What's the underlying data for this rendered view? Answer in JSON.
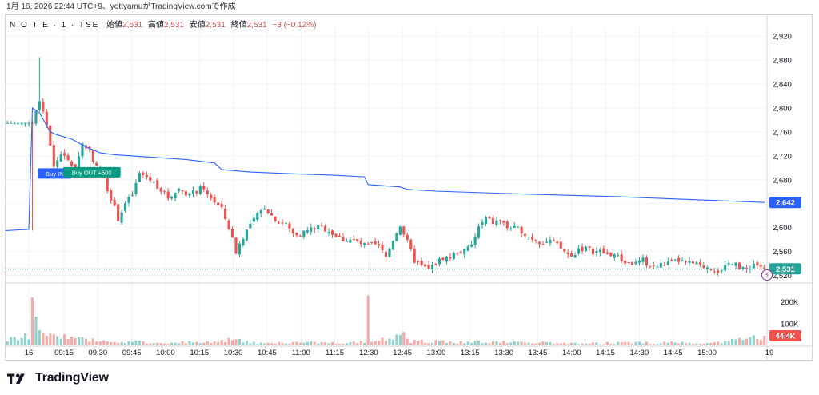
{
  "caption": "1月 16, 2026 22:44 UTC+9、yottyamuがTradingView.comで作成",
  "legend": {
    "symbol": "N O T E · 1 · TSE",
    "open_label": "始値",
    "open": "2,531",
    "high_label": "高値",
    "high": "2,531",
    "low_label": "安値",
    "low": "2,531",
    "close_label": "終値",
    "close": "2,531",
    "change": "−3 (−0.12%)"
  },
  "brand": "TradingView",
  "icons": [
    "tradingview-logo-icon",
    "lightning-icon"
  ],
  "colors": {
    "up": "#26a69a",
    "down": "#ef5350",
    "vwap": "#2962ff",
    "close_badge": "#26a69a",
    "vwap_badge": "#2962ff",
    "volume_badge": "#ef5350"
  },
  "chart_data": {
    "type": "candlestick",
    "interval": "1 minute",
    "x_tick_labels": [
      "16",
      "09:15",
      "09:30",
      "09:45",
      "10:00",
      "10:15",
      "10:30",
      "10:45",
      "11:00",
      "11:15",
      "12:30",
      "12:45",
      "13:00",
      "13:15",
      "13:30",
      "13:45",
      "14:00",
      "14:15",
      "14:30",
      "14:45",
      "15:00",
      "19"
    ],
    "price_axis": {
      "ticks": [
        "2,920",
        "2,880",
        "2,840",
        "2,800",
        "2,760",
        "2,720",
        "2,680",
        "2,640",
        "2,600",
        "2,560",
        "2,520"
      ],
      "range": [
        2510,
        2935
      ]
    },
    "volume_axis": {
      "ticks": [
        "200K",
        "100K"
      ],
      "range": [
        0,
        280000
      ]
    },
    "price_path": [
      [
        0,
        2775
      ],
      [
        7,
        2775
      ],
      [
        8,
        2790
      ],
      [
        9,
        2815
      ],
      [
        10,
        2790
      ],
      [
        11,
        2770
      ],
      [
        12,
        2740
      ],
      [
        13,
        2700
      ],
      [
        15,
        2725
      ],
      [
        17,
        2710
      ],
      [
        19,
        2700
      ],
      [
        21,
        2740
      ],
      [
        23,
        2730
      ],
      [
        25,
        2700
      ],
      [
        27,
        2680
      ],
      [
        29,
        2650
      ],
      [
        31,
        2615
      ],
      [
        33,
        2640
      ],
      [
        35,
        2655
      ],
      [
        37,
        2690
      ],
      [
        39,
        2685
      ],
      [
        42,
        2670
      ],
      [
        45,
        2650
      ],
      [
        48,
        2665
      ],
      [
        51,
        2655
      ],
      [
        54,
        2665
      ],
      [
        57,
        2650
      ],
      [
        60,
        2630
      ],
      [
        62,
        2600
      ],
      [
        64,
        2560
      ],
      [
        66,
        2585
      ],
      [
        68,
        2605
      ],
      [
        70,
        2620
      ],
      [
        72,
        2635
      ],
      [
        74,
        2620
      ],
      [
        76,
        2610
      ],
      [
        78,
        2605
      ],
      [
        80,
        2590
      ],
      [
        82,
        2590
      ],
      [
        84,
        2595
      ],
      [
        86,
        2600
      ],
      [
        88,
        2600
      ],
      [
        90,
        2595
      ],
      [
        92,
        2585
      ],
      [
        94,
        2580
      ],
      [
        96,
        2580
      ],
      [
        98,
        2575
      ],
      [
        100,
        2570
      ],
      [
        102,
        2570
      ],
      [
        104,
        2568
      ],
      [
        106,
        2550
      ],
      [
        108,
        2580
      ],
      [
        110,
        2605
      ],
      [
        111,
        2590
      ],
      [
        113,
        2560
      ],
      [
        114,
        2545
      ],
      [
        116,
        2535
      ],
      [
        118,
        2530
      ],
      [
        120,
        2540
      ],
      [
        122,
        2550
      ],
      [
        124,
        2550
      ],
      [
        126,
        2560
      ],
      [
        128,
        2560
      ],
      [
        130,
        2570
      ],
      [
        132,
        2600
      ],
      [
        134,
        2615
      ],
      [
        136,
        2608
      ],
      [
        138,
        2612
      ],
      [
        140,
        2600
      ],
      [
        142,
        2598
      ],
      [
        144,
        2595
      ],
      [
        146,
        2585
      ],
      [
        148,
        2580
      ],
      [
        150,
        2575
      ],
      [
        152,
        2578
      ],
      [
        154,
        2570
      ],
      [
        156,
        2560
      ],
      [
        158,
        2550
      ],
      [
        160,
        2565
      ],
      [
        162,
        2565
      ],
      [
        164,
        2560
      ],
      [
        166,
        2560
      ],
      [
        168,
        2555
      ],
      [
        170,
        2555
      ],
      [
        172,
        2545
      ],
      [
        174,
        2540
      ],
      [
        176,
        2540
      ],
      [
        178,
        2545
      ],
      [
        180,
        2535
      ],
      [
        182,
        2535
      ],
      [
        184,
        2540
      ],
      [
        186,
        2540
      ],
      [
        188,
        2545
      ],
      [
        190,
        2540
      ],
      [
        192,
        2540
      ],
      [
        194,
        2535
      ],
      [
        196,
        2535
      ],
      [
        198,
        2530
      ],
      [
        200,
        2525
      ],
      [
        202,
        2540
      ],
      [
        204,
        2545
      ],
      [
        205,
        2530
      ],
      [
        207,
        2530
      ],
      [
        209,
        2540
      ],
      [
        211,
        2535
      ],
      [
        212,
        2531
      ]
    ],
    "candle_count": 213,
    "open_price": 2775,
    "last_price": 2531,
    "session_high": 2885,
    "session_low": 2520,
    "vwap_path": [
      [
        0,
        2595
      ],
      [
        6,
        2597
      ],
      [
        7,
        2800
      ],
      [
        9,
        2792
      ],
      [
        12,
        2760
      ],
      [
        14,
        2755
      ],
      [
        18,
        2748
      ],
      [
        22,
        2735
      ],
      [
        26,
        2725
      ],
      [
        30,
        2722
      ],
      [
        40,
        2718
      ],
      [
        50,
        2714
      ],
      [
        58,
        2708
      ],
      [
        60,
        2697
      ],
      [
        68,
        2693
      ],
      [
        80,
        2690
      ],
      [
        90,
        2688
      ],
      [
        100,
        2685
      ],
      [
        101,
        2672
      ],
      [
        110,
        2668
      ],
      [
        112,
        2664
      ],
      [
        120,
        2661
      ],
      [
        140,
        2657
      ],
      [
        170,
        2652
      ],
      [
        200,
        2645
      ],
      [
        212,
        2642
      ]
    ],
    "volume_profile": [
      [
        0,
        25000
      ],
      [
        6,
        40000
      ],
      [
        7,
        220000
      ],
      [
        8,
        160000
      ],
      [
        9,
        120000
      ],
      [
        10,
        80000
      ],
      [
        12,
        60000
      ],
      [
        15,
        40000
      ],
      [
        20,
        28000
      ],
      [
        30,
        18000
      ],
      [
        45,
        12000
      ],
      [
        60,
        18000
      ],
      [
        65,
        30000
      ],
      [
        70,
        12000
      ],
      [
        100,
        14000
      ],
      [
        101,
        230000
      ],
      [
        102,
        20000
      ],
      [
        108,
        40000
      ],
      [
        112,
        48000
      ],
      [
        113,
        20000
      ],
      [
        130,
        16000
      ],
      [
        140,
        14000
      ],
      [
        160,
        10000
      ],
      [
        180,
        12000
      ],
      [
        200,
        14000
      ],
      [
        212,
        44400
      ]
    ],
    "vwap": 2642,
    "last_volume": "44.4K",
    "badges": {
      "close": "2,531",
      "vwap": "2,642",
      "volume": "44.4K"
    },
    "annotations": [
      {
        "label": "Buy IN",
        "candle": 9,
        "price": 2690
      },
      {
        "label": "Buy OUT +500",
        "candle": 16,
        "price": 2692
      }
    ],
    "grid": true
  }
}
